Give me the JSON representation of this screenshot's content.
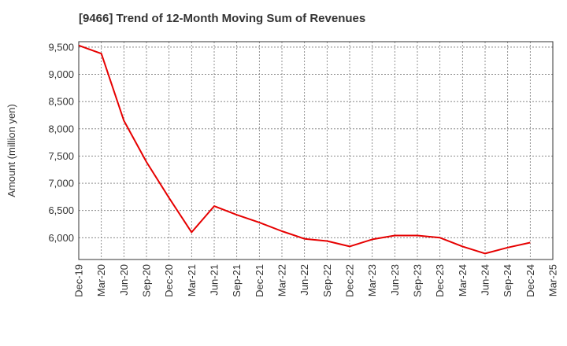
{
  "chart_data": {
    "type": "line",
    "title": "[9466]  Trend of 12-Month Moving Sum of Revenues",
    "xlabel": "",
    "ylabel": "Amount (million yen)",
    "ylim": [
      5600,
      9600
    ],
    "yticks": [
      6000,
      6500,
      7000,
      7500,
      8000,
      8500,
      9000,
      9500
    ],
    "ytick_labels": [
      "6,000",
      "6,500",
      "7,000",
      "7,500",
      "8,000",
      "8,500",
      "9,000",
      "9,500"
    ],
    "x_tick_labels": [
      "Dec-19",
      "Mar-20",
      "Jun-20",
      "Sep-20",
      "Dec-20",
      "Mar-21",
      "Jun-21",
      "Sep-21",
      "Dec-21",
      "Mar-22",
      "Jun-22",
      "Sep-22",
      "Dec-22",
      "Mar-23",
      "Jun-23",
      "Sep-23",
      "Dec-23",
      "Mar-24",
      "Jun-24",
      "Sep-24",
      "Dec-24",
      "Mar-25"
    ],
    "grid": true,
    "line_color": "#e60000",
    "series": [
      {
        "x": [
          "Dec-19",
          "Mar-20",
          "Jun-20",
          "Sep-20",
          "Dec-20",
          "Mar-21",
          "Jun-21",
          "Sep-21",
          "Dec-21",
          "Mar-22",
          "Jun-22",
          "Sep-22",
          "Dec-22",
          "Mar-23",
          "Jun-23",
          "Sep-23",
          "Dec-23",
          "Mar-24",
          "Jun-24",
          "Sep-24",
          "Dec-24"
        ],
        "values": [
          9530,
          9380,
          8150,
          7390,
          6730,
          6100,
          6580,
          6420,
          6280,
          6120,
          5980,
          5940,
          5840,
          5970,
          6040,
          6040,
          6000,
          5840,
          5710,
          5820,
          5910
        ]
      }
    ]
  }
}
